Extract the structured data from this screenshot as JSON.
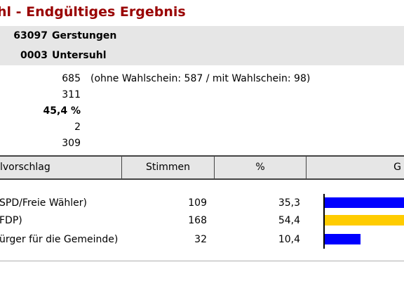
{
  "title": "hl - Endgültiges Ergebnis",
  "area": [
    {
      "code": "63097",
      "name": "Gerstungen"
    },
    {
      "code": "0003",
      "name": "Untersuhl"
    }
  ],
  "stats": [
    {
      "value": "685",
      "note": "(ohne Wahlschein: 587 / mit Wahlschein: 98)"
    },
    {
      "value": "311",
      "note": ""
    },
    {
      "value": "45,4 %",
      "note": ""
    },
    {
      "value": "2",
      "note": ""
    },
    {
      "value": "309",
      "note": ""
    }
  ],
  "table": {
    "headers": [
      "lvorschlag",
      "Stimmen",
      "%",
      "G"
    ],
    "rows": [
      {
        "label": "SPD/Freie Wähler)",
        "votes": "109",
        "percent": "35,3",
        "share": 35.3,
        "color": "#0000ff"
      },
      {
        "label": "FDP)",
        "votes": "168",
        "percent": "54,4",
        "share": 54.4,
        "color": "#ffcc00"
      },
      {
        "label": "ürger für die Gemeinde)",
        "votes": "32",
        "percent": "10,4",
        "share": 10.4,
        "color": "#0000ff"
      }
    ]
  }
}
